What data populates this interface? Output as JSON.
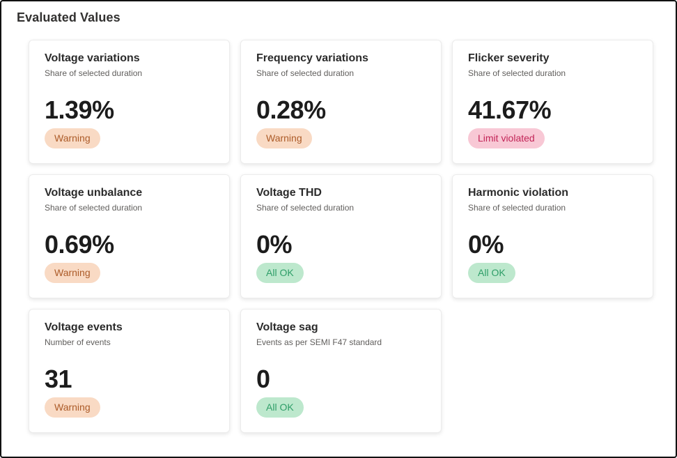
{
  "page": {
    "title": "Evaluated Values"
  },
  "status_styles": {
    "warning": {
      "bg": "#F9DAC4",
      "text": "#AC5B28"
    },
    "violated": {
      "bg": "#F8C8D5",
      "text": "#C22457"
    },
    "ok": {
      "bg": "#BDE8CD",
      "text": "#2E9E68"
    }
  },
  "cards": [
    {
      "title": "Voltage variations",
      "subtitle": "Share of selected duration",
      "value": "1.39%",
      "status": "Warning",
      "status_type": "warning"
    },
    {
      "title": "Frequency variations",
      "subtitle": "Share of selected duration",
      "value": "0.28%",
      "status": "Warning",
      "status_type": "warning"
    },
    {
      "title": "Flicker severity",
      "subtitle": "Share of selected duration",
      "value": "41.67%",
      "status": "Limit violated",
      "status_type": "violated"
    },
    {
      "title": "Voltage unbalance",
      "subtitle": "Share of selected duration",
      "value": "0.69%",
      "status": "Warning",
      "status_type": "warning"
    },
    {
      "title": "Voltage THD",
      "subtitle": "Share of selected duration",
      "value": "0%",
      "status": "All OK",
      "status_type": "ok"
    },
    {
      "title": "Harmonic violation",
      "subtitle": "Share of selected duration",
      "value": "0%",
      "status": "All OK",
      "status_type": "ok"
    },
    {
      "title": "Voltage events",
      "subtitle": "Number of events",
      "value": "31",
      "status": "Warning",
      "status_type": "warning"
    },
    {
      "title": "Voltage sag",
      "subtitle": "Events as per SEMI F47 standard",
      "value": "0",
      "status": "All OK",
      "status_type": "ok"
    }
  ]
}
